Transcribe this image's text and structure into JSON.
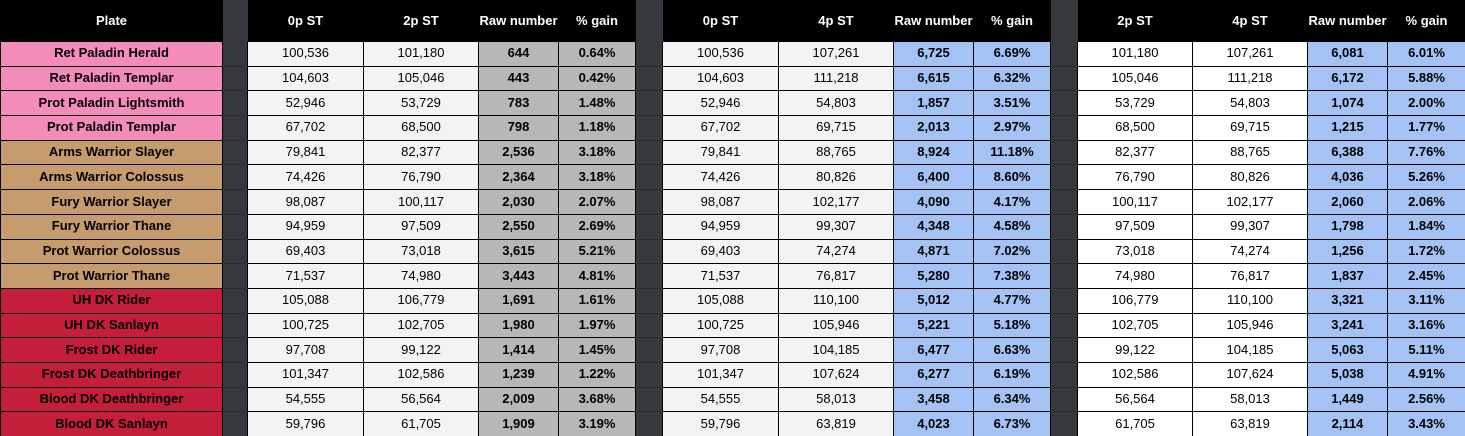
{
  "table": {
    "plate_header": "Plate",
    "groups": [
      {
        "col1": "0p ST",
        "col2": "2p ST",
        "raw_label": "Raw number",
        "gain_label": "% gain",
        "accent": "#B7B7B7",
        "value_bg": "#F3F3F3"
      },
      {
        "col1": "0p ST",
        "col2": "4p ST",
        "raw_label": "Raw number",
        "gain_label": "% gain",
        "accent": "#A4C2F4",
        "value_bg": "#F3F3F3"
      },
      {
        "col1": "2p ST",
        "col2": "4p ST",
        "raw_label": "Raw number",
        "gain_label": "% gain",
        "accent": "#A4C2F4",
        "value_bg": "#FFFFFF"
      }
    ],
    "class_colors": {
      "paladin": "#F48CBA",
      "warrior": "#C69B6D",
      "death_knight": "#C41E3A"
    },
    "rows": [
      {
        "name": "Ret Paladin Herald",
        "class_color": "#F48CBA",
        "g1": [
          "100,536",
          "101,180",
          "644",
          "0.64%"
        ],
        "g2": [
          "100,536",
          "107,261",
          "6,725",
          "6.69%"
        ],
        "g3": [
          "101,180",
          "107,261",
          "6,081",
          "6.01%"
        ]
      },
      {
        "name": "Ret Paladin Templar",
        "class_color": "#F48CBA",
        "g1": [
          "104,603",
          "105,046",
          "443",
          "0.42%"
        ],
        "g2": [
          "104,603",
          "111,218",
          "6,615",
          "6.32%"
        ],
        "g3": [
          "105,046",
          "111,218",
          "6,172",
          "5.88%"
        ]
      },
      {
        "name": "Prot Paladin Lightsmith",
        "class_color": "#F48CBA",
        "g1": [
          "52,946",
          "53,729",
          "783",
          "1.48%"
        ],
        "g2": [
          "52,946",
          "54,803",
          "1,857",
          "3.51%"
        ],
        "g3": [
          "53,729",
          "54,803",
          "1,074",
          "2.00%"
        ]
      },
      {
        "name": "Prot Paladin Templar",
        "class_color": "#F48CBA",
        "g1": [
          "67,702",
          "68,500",
          "798",
          "1.18%"
        ],
        "g2": [
          "67,702",
          "69,715",
          "2,013",
          "2.97%"
        ],
        "g3": [
          "68,500",
          "69,715",
          "1,215",
          "1.77%"
        ]
      },
      {
        "name": "Arms Warrior Slayer",
        "class_color": "#C69B6D",
        "g1": [
          "79,841",
          "82,377",
          "2,536",
          "3.18%"
        ],
        "g2": [
          "79,841",
          "88,765",
          "8,924",
          "11.18%"
        ],
        "g3": [
          "82,377",
          "88,765",
          "6,388",
          "7.76%"
        ]
      },
      {
        "name": "Arms Warrior Colossus",
        "class_color": "#C69B6D",
        "g1": [
          "74,426",
          "76,790",
          "2,364",
          "3.18%"
        ],
        "g2": [
          "74,426",
          "80,826",
          "6,400",
          "8.60%"
        ],
        "g3": [
          "76,790",
          "80,826",
          "4,036",
          "5.26%"
        ]
      },
      {
        "name": "Fury Warrior Slayer",
        "class_color": "#C69B6D",
        "g1": [
          "98,087",
          "100,117",
          "2,030",
          "2.07%"
        ],
        "g2": [
          "98,087",
          "102,177",
          "4,090",
          "4.17%"
        ],
        "g3": [
          "100,117",
          "102,177",
          "2,060",
          "2.06%"
        ]
      },
      {
        "name": "Fury Warrior Thane",
        "class_color": "#C69B6D",
        "g1": [
          "94,959",
          "97,509",
          "2,550",
          "2.69%"
        ],
        "g2": [
          "94,959",
          "99,307",
          "4,348",
          "4.58%"
        ],
        "g3": [
          "97,509",
          "99,307",
          "1,798",
          "1.84%"
        ]
      },
      {
        "name": "Prot Warrior Colossus",
        "class_color": "#C69B6D",
        "g1": [
          "69,403",
          "73,018",
          "3,615",
          "5.21%"
        ],
        "g2": [
          "69,403",
          "74,274",
          "4,871",
          "7.02%"
        ],
        "g3": [
          "73,018",
          "74,274",
          "1,256",
          "1.72%"
        ]
      },
      {
        "name": "Prot Warrior Thane",
        "class_color": "#C69B6D",
        "g1": [
          "71,537",
          "74,980",
          "3,443",
          "4.81%"
        ],
        "g2": [
          "71,537",
          "76,817",
          "5,280",
          "7.38%"
        ],
        "g3": [
          "74,980",
          "76,817",
          "1,837",
          "2.45%"
        ]
      },
      {
        "name": "UH DK Rider",
        "class_color": "#C41E3A",
        "g1": [
          "105,088",
          "106,779",
          "1,691",
          "1.61%"
        ],
        "g2": [
          "105,088",
          "110,100",
          "5,012",
          "4.77%"
        ],
        "g3": [
          "106,779",
          "110,100",
          "3,321",
          "3.11%"
        ]
      },
      {
        "name": "UH DK Sanlayn",
        "class_color": "#C41E3A",
        "g1": [
          "100,725",
          "102,705",
          "1,980",
          "1.97%"
        ],
        "g2": [
          "100,725",
          "105,946",
          "5,221",
          "5.18%"
        ],
        "g3": [
          "102,705",
          "105,946",
          "3,241",
          "3.16%"
        ]
      },
      {
        "name": "Frost DK Rider",
        "class_color": "#C41E3A",
        "g1": [
          "97,708",
          "99,122",
          "1,414",
          "1.45%"
        ],
        "g2": [
          "97,708",
          "104,185",
          "6,477",
          "6.63%"
        ],
        "g3": [
          "99,122",
          "104,185",
          "5,063",
          "5.11%"
        ]
      },
      {
        "name": "Frost DK Deathbringer",
        "class_color": "#C41E3A",
        "g1": [
          "101,347",
          "102,586",
          "1,239",
          "1.22%"
        ],
        "g2": [
          "101,347",
          "107,624",
          "6,277",
          "6.19%"
        ],
        "g3": [
          "102,586",
          "107,624",
          "5,038",
          "4.91%"
        ]
      },
      {
        "name": "Blood DK Deathbringer",
        "class_color": "#C41E3A",
        "g1": [
          "54,555",
          "56,564",
          "2,009",
          "3.68%"
        ],
        "g2": [
          "54,555",
          "58,013",
          "3,458",
          "6.34%"
        ],
        "g3": [
          "56,564",
          "58,013",
          "1,449",
          "2.56%"
        ]
      },
      {
        "name": "Blood DK Sanlayn",
        "class_color": "#C41E3A",
        "g1": [
          "59,796",
          "61,705",
          "1,909",
          "3.19%"
        ],
        "g2": [
          "59,796",
          "63,819",
          "4,023",
          "6.73%"
        ],
        "g3": [
          "61,705",
          "63,819",
          "2,114",
          "3.43%"
        ]
      }
    ]
  }
}
